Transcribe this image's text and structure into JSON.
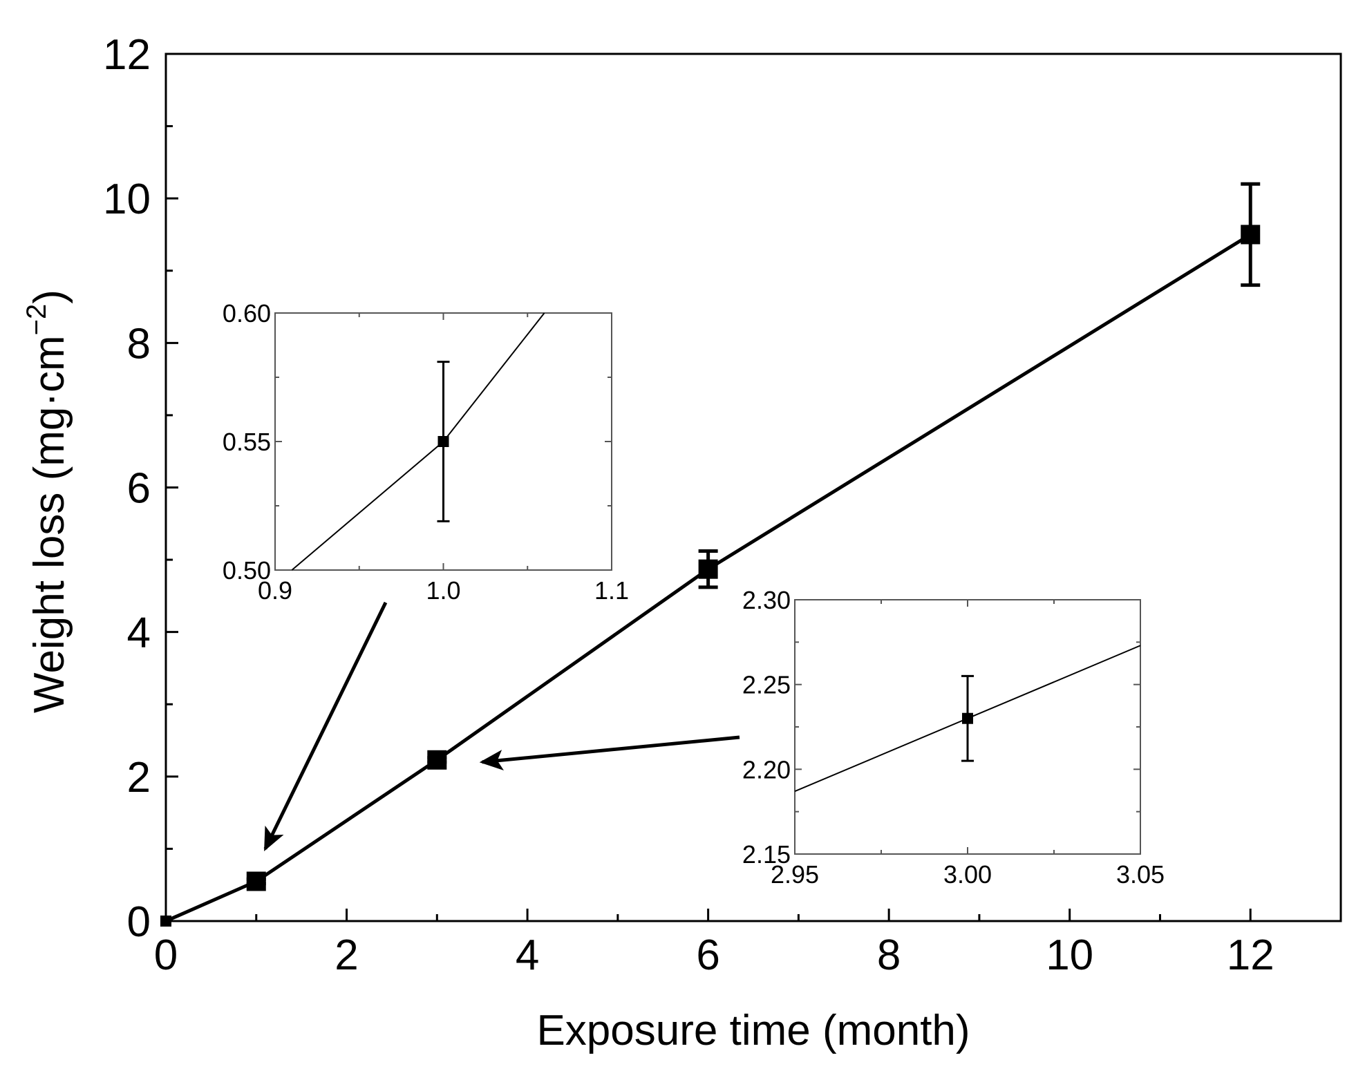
{
  "chart_data": {
    "type": "line",
    "xlabel": "Exposure time (month)",
    "ylabel_text": "Weight loss (mg·cm",
    "ylabel_sup": "−2",
    "ylabel_close": ")",
    "xlim": [
      0,
      13
    ],
    "ylim": [
      0,
      12
    ],
    "x_ticks": [
      0,
      2,
      4,
      6,
      8,
      10,
      12
    ],
    "x_tick_labels": [
      "0",
      "2",
      "4",
      "6",
      "8",
      "10",
      "12"
    ],
    "y_ticks": [
      0,
      2,
      4,
      6,
      8,
      10,
      12
    ],
    "y_tick_labels": [
      "0",
      "2",
      "4",
      "6",
      "8",
      "10",
      "12"
    ],
    "grid": false,
    "series": [
      {
        "x": [
          0,
          1,
          3,
          6,
          12
        ],
        "y": [
          0,
          0.55,
          2.23,
          4.87,
          9.5
        ],
        "yerr": [
          0,
          0.03,
          0.03,
          0.25,
          0.7
        ],
        "marker": "square",
        "color": "#000000"
      }
    ],
    "insets": [
      {
        "xlim": [
          0.9,
          1.1
        ],
        "ylim": [
          0.5,
          0.6
        ],
        "x_ticks": [
          0.9,
          1.0,
          1.1
        ],
        "x_tick_labels": [
          "0.9",
          "1.0",
          "1.1"
        ],
        "y_ticks": [
          0.5,
          0.55,
          0.6
        ],
        "y_tick_labels": [
          "0.50",
          "0.55",
          "0.60"
        ],
        "point": {
          "x": 1.0,
          "y": 0.55,
          "yerr": 0.031
        },
        "line": [
          [
            0.91,
            0.5
          ],
          [
            1.0,
            0.55
          ],
          [
            1.06,
            0.6
          ]
        ],
        "arrow_target": {
          "x": 1.1,
          "y": 1.0
        }
      },
      {
        "xlim": [
          2.95,
          3.05
        ],
        "ylim": [
          2.15,
          2.3
        ],
        "x_ticks": [
          2.95,
          3.0,
          3.05
        ],
        "x_tick_labels": [
          "2.95",
          "3.00",
          "3.05"
        ],
        "y_ticks": [
          2.15,
          2.2,
          2.25,
          2.3
        ],
        "y_tick_labels": [
          "2.15",
          "2.20",
          "2.25",
          "2.30"
        ],
        "point": {
          "x": 3.0,
          "y": 2.23,
          "yerr": 0.025
        },
        "line": [
          [
            2.95,
            2.187
          ],
          [
            3.0,
            2.23
          ],
          [
            3.05,
            2.273
          ]
        ],
        "arrow_target": {
          "x": 3.5,
          "y": 2.2
        }
      }
    ]
  }
}
